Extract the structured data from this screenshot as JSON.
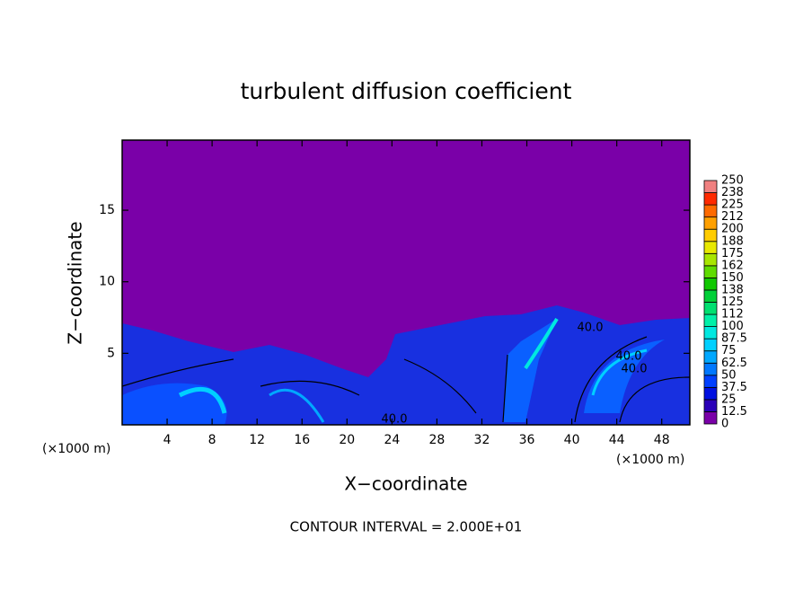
{
  "chart_data": {
    "type": "contour",
    "title": "turbulent diffusion coefficient",
    "x_label": "X−coordinate",
    "y_label": "Z−coordinate",
    "x_unit": "(×1000 m)",
    "footer": "CONTOUR INTERVAL = 2.000E+01",
    "xlim": [
      0,
      50.5
    ],
    "xticks": [
      4,
      8,
      12,
      16,
      20,
      24,
      28,
      32,
      36,
      40,
      44,
      48
    ],
    "ylim": [
      0,
      19.9
    ],
    "yticks": [
      5,
      10,
      15
    ],
    "levels": [
      0,
      12.5,
      25,
      37.5,
      50,
      62.5,
      75,
      87.5,
      100,
      112,
      125,
      138,
      150,
      162,
      175,
      188,
      200,
      212,
      225,
      238,
      250
    ],
    "colors": [
      "#7a00a8",
      "#2a00b8",
      "#0010e0",
      "#0040ff",
      "#0078ff",
      "#00a8ff",
      "#00d0ff",
      "#00e8e0",
      "#00f0a8",
      "#00e070",
      "#00d038",
      "#10c800",
      "#60dc00",
      "#a8e600",
      "#e8e800",
      "#ffcc00",
      "#ffa000",
      "#ff6a00",
      "#ff2a00",
      "#f08080"
    ],
    "contour_labels": [
      "40.0",
      "40.0",
      "40.0",
      "40.0"
    ]
  }
}
